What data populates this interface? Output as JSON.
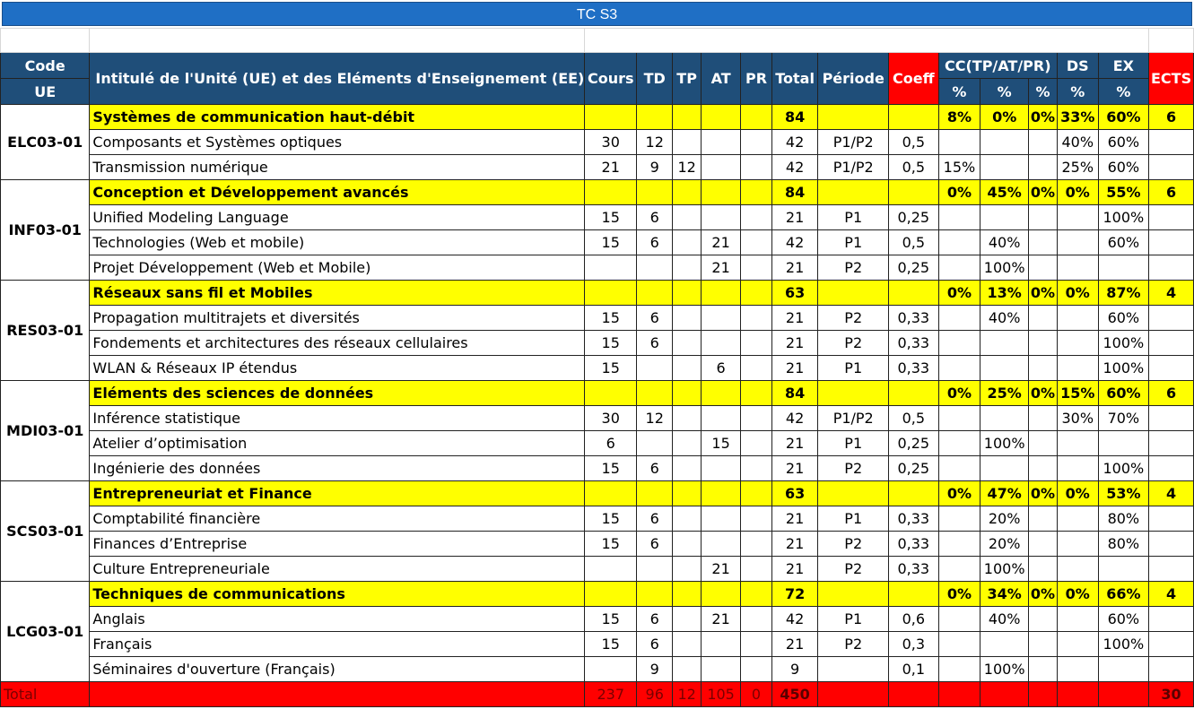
{
  "title": "TC S3",
  "header": {
    "code": "Code",
    "ue": "UE",
    "intitule": "Intitulé de l'Unité (UE) et des Eléments d'Enseignement (EE)",
    "cours": "Cours",
    "td": "TD",
    "tp": "TP",
    "at": "AT",
    "pr": "PR",
    "total": "Total",
    "periode": "Période",
    "coeff": "Coeff",
    "cc": "CC(TP/AT/PR)",
    "ds": "DS",
    "ex": "EX",
    "ects": "ECTS",
    "pct": "%"
  },
  "units": [
    {
      "code": "ELC03-01",
      "name": "Systèmes de communication haut-débit",
      "total": "84",
      "cc1": "8%",
      "cc2": "0%",
      "cc3": "0%",
      "ds": "33%",
      "ex": "60%",
      "ects": "6",
      "elements": [
        {
          "name": "Composants et Systèmes optiques",
          "cours": "30",
          "td": "12",
          "tp": "",
          "at": "",
          "pr": "",
          "total": "42",
          "periode": "P1/P2",
          "coeff": "0,5",
          "cc1": "",
          "cc2": "",
          "cc3": "",
          "ds": "40%",
          "ex": "60%"
        },
        {
          "name": "Transmission numérique",
          "cours": "21",
          "td": "9",
          "tp": "12",
          "at": "",
          "pr": "",
          "total": "42",
          "periode": "P1/P2",
          "coeff": "0,5",
          "cc1": "15%",
          "cc2": "",
          "cc3": "",
          "ds": "25%",
          "ex": "60%"
        }
      ]
    },
    {
      "code": "INF03-01",
      "name": "Conception et Développement avancés",
      "total": "84",
      "cc1": "0%",
      "cc2": "45%",
      "cc3": "0%",
      "ds": "0%",
      "ex": "55%",
      "ects": "6",
      "elements": [
        {
          "name": "Unified Modeling Language",
          "cours": "15",
          "td": "6",
          "tp": "",
          "at": "",
          "pr": "",
          "total": "21",
          "periode": "P1",
          "coeff": "0,25",
          "cc1": "",
          "cc2": "",
          "cc3": "",
          "ds": "",
          "ex": "100%"
        },
        {
          "name": "Technologies (Web et mobile)",
          "cours": "15",
          "td": "6",
          "tp": "",
          "at": "21",
          "pr": "",
          "total": "42",
          "periode": "P1",
          "coeff": "0,5",
          "cc1": "",
          "cc2": "40%",
          "cc3": "",
          "ds": "",
          "ex": "60%"
        },
        {
          "name": "Projet Développement (Web et Mobile)",
          "cours": "",
          "td": "",
          "tp": "",
          "at": "21",
          "pr": "",
          "total": "21",
          "periode": "P2",
          "coeff": "0,25",
          "cc1": "",
          "cc2": "100%",
          "cc3": "",
          "ds": "",
          "ex": ""
        }
      ]
    },
    {
      "code": "RES03-01",
      "name": "Réseaux sans fil et Mobiles",
      "total": "63",
      "cc1": "0%",
      "cc2": "13%",
      "cc3": "0%",
      "ds": "0%",
      "ex": "87%",
      "ects": "4",
      "elements": [
        {
          "name": "Propagation multitrajets et diversités",
          "cours": "15",
          "td": "6",
          "tp": "",
          "at": "",
          "pr": "",
          "total": "21",
          "periode": "P2",
          "coeff": "0,33",
          "cc1": "",
          "cc2": "40%",
          "cc3": "",
          "ds": "",
          "ex": "60%"
        },
        {
          "name": "Fondements et architectures des réseaux cellulaires",
          "cours": "15",
          "td": "6",
          "tp": "",
          "at": "",
          "pr": "",
          "total": "21",
          "periode": "P2",
          "coeff": "0,33",
          "cc1": "",
          "cc2": "",
          "cc3": "",
          "ds": "",
          "ex": "100%"
        },
        {
          "name": "WLAN & Réseaux IP étendus",
          "cours": "15",
          "td": "",
          "tp": "",
          "at": "6",
          "pr": "",
          "total": "21",
          "periode": "P1",
          "coeff": "0,33",
          "cc1": "",
          "cc2": "",
          "cc3": "",
          "ds": "",
          "ex": "100%"
        }
      ]
    },
    {
      "code": "MDI03-01",
      "name": "Eléments des sciences de données",
      "total": "84",
      "cc1": "0%",
      "cc2": "25%",
      "cc3": "0%",
      "ds": "15%",
      "ex": "60%",
      "ects": "6",
      "elements": [
        {
          "name": "Inférence statistique",
          "cours": "30",
          "td": "12",
          "tp": "",
          "at": "",
          "pr": "",
          "total": "42",
          "periode": "P1/P2",
          "coeff": "0,5",
          "cc1": "",
          "cc2": "",
          "cc3": "",
          "ds": "30%",
          "ex": "70%"
        },
        {
          "name": "Atelier d’optimisation",
          "cours": "6",
          "td": "",
          "tp": "",
          "at": "15",
          "pr": "",
          "total": "21",
          "periode": "P1",
          "coeff": "0,25",
          "cc1": "",
          "cc2": "100%",
          "cc3": "",
          "ds": "",
          "ex": ""
        },
        {
          "name": "Ingénierie des données",
          "cours": "15",
          "td": "6",
          "tp": "",
          "at": "",
          "pr": "",
          "total": "21",
          "periode": "P2",
          "coeff": "0,25",
          "cc1": "",
          "cc2": "",
          "cc3": "",
          "ds": "",
          "ex": "100%"
        }
      ]
    },
    {
      "code": "SCS03-01",
      "name": "Entrepreneuriat et Finance",
      "total": "63",
      "cc1": "0%",
      "cc2": "47%",
      "cc3": "0%",
      "ds": "0%",
      "ex": "53%",
      "ects": "4",
      "elements": [
        {
          "name": "Comptabilité financière",
          "cours": "15",
          "td": "6",
          "tp": "",
          "at": "",
          "pr": "",
          "total": "21",
          "periode": "P1",
          "coeff": "0,33",
          "cc1": "",
          "cc2": "20%",
          "cc3": "",
          "ds": "",
          "ex": "80%"
        },
        {
          "name": "Finances d’Entreprise",
          "cours": "15",
          "td": "6",
          "tp": "",
          "at": "",
          "pr": "",
          "total": "21",
          "periode": "P2",
          "coeff": "0,33",
          "cc1": "",
          "cc2": "20%",
          "cc3": "",
          "ds": "",
          "ex": "80%"
        },
        {
          "name": "Culture Entrepreneuriale",
          "cours": "",
          "td": "",
          "tp": "",
          "at": "21",
          "pr": "",
          "total": "21",
          "periode": "P2",
          "coeff": "0,33",
          "cc1": "",
          "cc2": "100%",
          "cc3": "",
          "ds": "",
          "ex": ""
        }
      ]
    },
    {
      "code": "LCG03-01",
      "name": "Techniques de communications",
      "total": "72",
      "cc1": "0%",
      "cc2": "34%",
      "cc3": "0%",
      "ds": "0%",
      "ex": "66%",
      "ects": "4",
      "elements": [
        {
          "name": "Anglais",
          "cours": "15",
          "td": "6",
          "tp": "",
          "at": "21",
          "pr": "",
          "total": "42",
          "periode": "P1",
          "coeff": "0,6",
          "cc1": "",
          "cc2": "40%",
          "cc3": "",
          "ds": "",
          "ex": "60%"
        },
        {
          "name": "Français",
          "cours": "15",
          "td": "6",
          "tp": "",
          "at": "",
          "pr": "",
          "total": "21",
          "periode": "P2",
          "coeff": "0,3",
          "cc1": "",
          "cc2": "",
          "cc3": "",
          "ds": "",
          "ex": "100%"
        },
        {
          "name": "Séminaires d'ouverture (Français)",
          "cours": "",
          "td": "9",
          "tp": "",
          "at": "",
          "pr": "",
          "total": "9",
          "periode": "",
          "coeff": "0,1",
          "cc1": "",
          "cc2": "100%",
          "cc3": "",
          "ds": "",
          "ex": ""
        }
      ]
    }
  ],
  "totals": {
    "label": "Total",
    "cours": "237",
    "td": "96",
    "tp": "12",
    "at": "105",
    "pr": "0",
    "total": "450",
    "ects": "30"
  },
  "colors": {
    "title_bg": "#1f6fc5",
    "header_bg": "#1f4e79",
    "coeff_bg": "#ff0000",
    "ue_row_bg": "#ffff00",
    "total_row_bg": "#ff0000"
  }
}
